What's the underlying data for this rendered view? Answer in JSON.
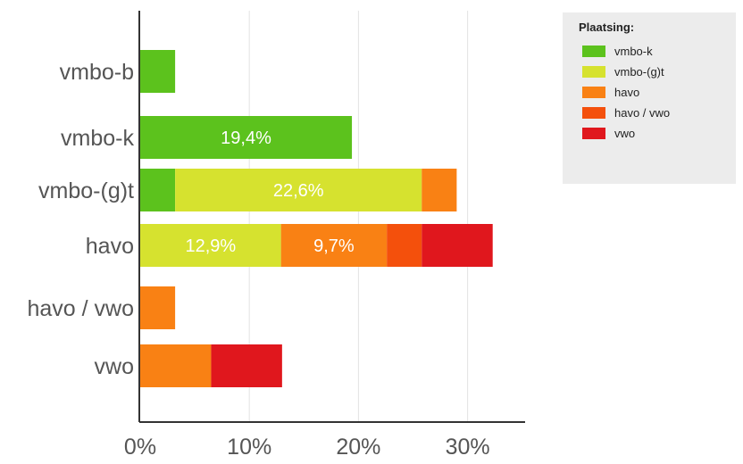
{
  "chart_data": {
    "type": "bar",
    "orientation": "horizontal",
    "stacked": true,
    "title": "",
    "xlabel": "",
    "ylabel": "",
    "categories": [
      "vmbo-b",
      "vmbo-k",
      "vmbo-(g)t",
      "havo",
      "havo / vwo",
      "vwo"
    ],
    "xlim": [
      0,
      35
    ],
    "x_ticks": [
      "0%",
      "10%",
      "20%",
      "30%"
    ],
    "x_tick_values": [
      0,
      10,
      20,
      30
    ],
    "grid": true,
    "legend_position": "top-right",
    "legend_title": "Plaatsing:",
    "series": [
      {
        "name": "vmbo-k",
        "color": "#5cc21d",
        "values": [
          3.2,
          19.4,
          3.2,
          0,
          0,
          0
        ],
        "labels": [
          "",
          "19,4%",
          "",
          "",
          "",
          ""
        ]
      },
      {
        "name": "vmbo-(g)t",
        "color": "#d6e22f",
        "values": [
          0,
          0,
          22.6,
          12.9,
          0,
          0
        ],
        "labels": [
          "",
          "",
          "22,6%",
          "12,9%",
          "",
          ""
        ]
      },
      {
        "name": "havo",
        "color": "#f98114",
        "values": [
          0,
          0,
          3.2,
          9.7,
          3.2,
          6.5
        ],
        "labels": [
          "",
          "",
          "",
          "9,7%",
          "",
          ""
        ]
      },
      {
        "name": "havo / vwo",
        "color": "#f4500c",
        "values": [
          0,
          0,
          0,
          3.2,
          0,
          0
        ],
        "labels": [
          "",
          "",
          "",
          "",
          "",
          ""
        ]
      },
      {
        "name": "vwo",
        "color": "#e0171d",
        "values": [
          0,
          0,
          0,
          6.5,
          0,
          6.5
        ],
        "labels": [
          "",
          "",
          "",
          "",
          "",
          ""
        ]
      }
    ]
  }
}
